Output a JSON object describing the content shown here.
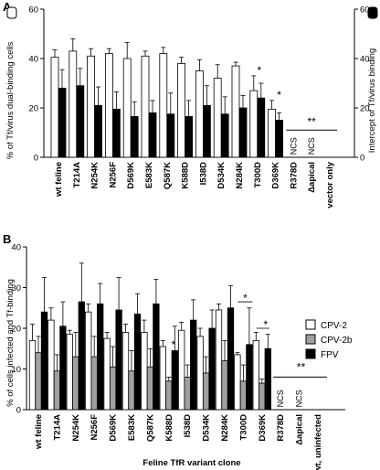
{
  "figure": {
    "xlabel_bottom": "Feline TfR variant clone"
  },
  "legend": [
    {
      "name": "CPV-2",
      "color": "#ffffff"
    },
    {
      "name": "CPV-2b",
      "color": "#a0a0a0"
    },
    {
      "name": "FPV",
      "color": "#000000"
    }
  ],
  "colors": {
    "white": "#ffffff",
    "gray": "#a0a0a0",
    "black": "#000000"
  },
  "chart_data": [
    {
      "panel": "A",
      "type": "bar",
      "ylabel_left": "% of Tf/virus dual-binding cells",
      "ylabel_right": "Intercept of Tf/virus binding",
      "ylim": [
        0,
        60
      ],
      "yticks": [
        0,
        20,
        40,
        60
      ],
      "categories": [
        "wt feline",
        "T214A",
        "N254K",
        "N256F",
        "D569K",
        "E583K",
        "Q587K",
        "K588D",
        "I538D",
        "D534K",
        "N284K",
        "T300D",
        "D369K",
        "R378D",
        "Δapical",
        "vector only"
      ],
      "series": [
        {
          "axis": "left",
          "color": "#ffffff",
          "values": [
            40.5,
            43,
            41,
            42,
            40,
            41,
            42,
            38,
            35,
            32,
            37,
            27,
            19.5,
            null,
            null,
            null
          ],
          "errors": [
            3,
            5,
            3,
            2,
            6.5,
            2,
            2.5,
            2.5,
            4.5,
            5.5,
            1.5,
            6,
            3.5,
            null,
            null,
            null
          ]
        },
        {
          "axis": "right",
          "color": "#000000",
          "values": [
            28,
            29,
            21,
            19.5,
            16.5,
            18,
            17.5,
            16.5,
            21,
            17.5,
            20,
            24,
            15,
            null,
            null,
            null
          ],
          "errors": [
            7.5,
            7,
            7.5,
            7,
            6,
            5,
            8.5,
            6.5,
            8,
            7,
            5,
            6,
            3,
            null,
            null,
            null
          ]
        }
      ],
      "bar_annotations": [
        "NCS",
        "NCS"
      ],
      "significance": [
        {
          "category": "T300D",
          "label": "*"
        },
        {
          "category": "D369K",
          "label": "*"
        },
        {
          "range": "R378D–vector only",
          "label": "**"
        }
      ]
    },
    {
      "panel": "B",
      "type": "bar",
      "ylabel_left": "% of cells infected and Tf-binding",
      "ylim": [
        0,
        40
      ],
      "yticks": [
        0,
        10,
        20,
        30,
        40
      ],
      "categories": [
        "wt feline",
        "T214A",
        "N254K",
        "N256F",
        "D569K",
        "E583K",
        "Q587K",
        "K588D",
        "I538D",
        "D534K",
        "N284K",
        "T300D",
        "D369K",
        "R378D",
        "Δapical",
        "wt, uninfected"
      ],
      "series": [
        {
          "name": "CPV-2",
          "color": "#ffffff",
          "values": [
            17,
            22,
            18.5,
            24,
            17.5,
            19,
            19,
            15.5,
            19.5,
            18,
            24.5,
            13.5,
            17,
            null,
            null,
            null
          ],
          "errors": [
            4,
            3,
            1,
            2,
            1.5,
            2,
            3,
            1.5,
            2,
            2,
            1.5,
            0.5,
            2,
            null,
            null,
            null
          ]
        },
        {
          "name": "CPV-2b",
          "color": "#a0a0a0",
          "values": [
            14,
            9.5,
            13,
            13,
            10.5,
            9.5,
            10.5,
            7,
            8,
            9,
            12,
            7,
            6.5,
            null,
            null,
            null
          ],
          "errors": [
            4,
            4,
            6,
            5,
            5,
            5,
            4.5,
            1,
            3,
            4,
            5,
            4,
            1,
            null,
            null,
            null
          ]
        },
        {
          "name": "FPV",
          "color": "#000000",
          "values": [
            24,
            20.5,
            26.5,
            26,
            24.5,
            23.5,
            26,
            14.5,
            22,
            20,
            25,
            16,
            15,
            null,
            null,
            null
          ],
          "errors": [
            8.5,
            6,
            9.5,
            5,
            8,
            5,
            6,
            6,
            5,
            4.5,
            5.5,
            9,
            3.5,
            null,
            null,
            null
          ]
        }
      ],
      "bar_annotations": [
        "NCS",
        "NCS"
      ],
      "significance": [
        {
          "category": "K588D",
          "label": "*"
        },
        {
          "category": "T300D",
          "label": "*"
        },
        {
          "category": "D369K",
          "label": "*"
        },
        {
          "range": "R378D–wt, uninfected",
          "label": "**"
        }
      ]
    }
  ]
}
